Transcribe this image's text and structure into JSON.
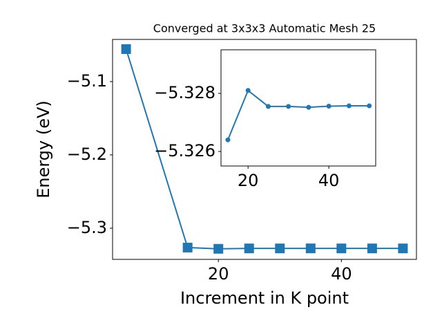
{
  "chart_data": [
    {
      "type": "line",
      "title": "Converged at 3x3x3 Automatic Mesh 25",
      "xlabel": "Increment in K point",
      "ylabel": "Energy (eV)",
      "x": [
        5,
        15,
        20,
        25,
        30,
        35,
        40,
        45,
        50
      ],
      "series": [
        {
          "color": "#1f77b4",
          "marker": "square",
          "values": [
            -5.0557,
            -5.3264,
            -5.3281,
            -5.32755,
            -5.32755,
            -5.32752,
            -5.32756,
            -5.32757,
            -5.32757
          ]
        }
      ],
      "xlim": [
        2.8,
        52.2
      ],
      "ylim": [
        -5.3425,
        -5.0425
      ],
      "xticks": [
        20,
        40
      ],
      "yticks": [
        {
          "value": -5.3,
          "label": "−5.3"
        },
        {
          "value": -5.2,
          "label": "−5.2"
        },
        {
          "value": -5.1,
          "label": "−5.1"
        }
      ]
    },
    {
      "type": "line",
      "x": [
        15,
        20,
        25,
        30,
        35,
        40,
        45,
        50
      ],
      "series": [
        {
          "color": "#1f77b4",
          "marker": "circle",
          "values": [
            -5.3264,
            -5.3281,
            -5.32755,
            -5.32755,
            -5.32752,
            -5.32756,
            -5.32757,
            -5.32757
          ]
        }
      ],
      "xlim": [
        13.3,
        51.6
      ],
      "ylim": [
        -5.3255,
        -5.3295
      ],
      "xticks": [
        20,
        40
      ],
      "yticks": [
        {
          "value": -5.326,
          "label": "−5.326"
        },
        {
          "value": -5.328,
          "label": "−5.328"
        }
      ]
    }
  ]
}
